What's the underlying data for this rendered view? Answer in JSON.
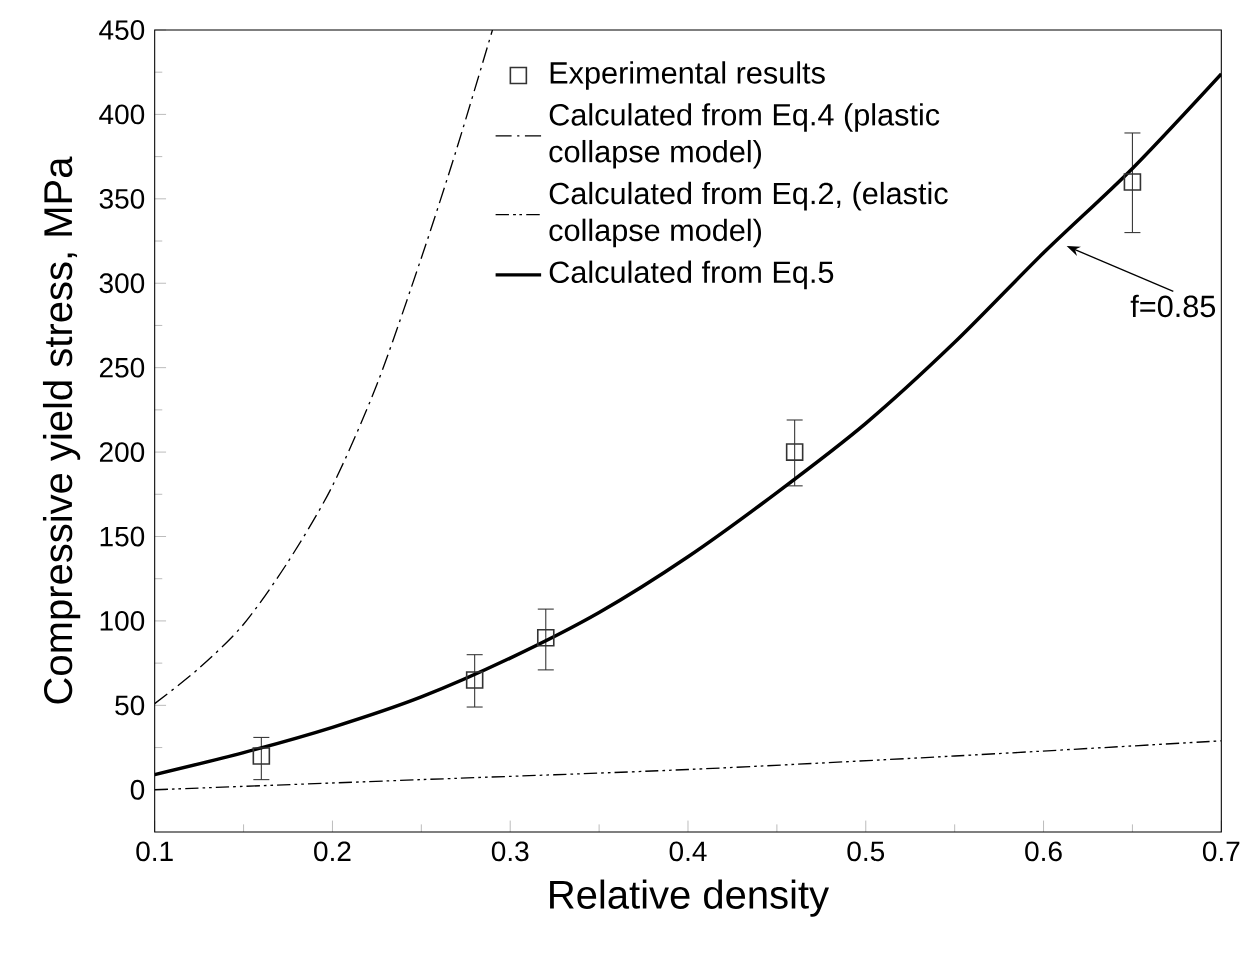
{
  "chart_data": {
    "type": "line",
    "xlabel": "Relative density",
    "ylabel": "Compressive yield stress, MPa",
    "xlim": [
      0.1,
      0.7
    ],
    "xticks": [
      0.1,
      0.2,
      0.3,
      0.4,
      0.5,
      0.6,
      0.7
    ],
    "ylim": [
      -25,
      450
    ],
    "yticks": [
      0,
      50,
      100,
      150,
      200,
      250,
      300,
      350,
      400,
      450
    ],
    "legend": "top",
    "grid": false,
    "annotations": [
      {
        "text": "f=0.85",
        "x": 0.613,
        "y": 322
      }
    ],
    "series": [
      {
        "name": "Experimental results",
        "type": "scatter",
        "color": "#333333",
        "marker": "square",
        "x": [
          0.16,
          0.28,
          0.32,
          0.46,
          0.65
        ],
        "values": [
          20,
          65,
          90,
          200,
          360
        ],
        "errors": [
          [
            6,
            31
          ],
          [
            49,
            80
          ],
          [
            71,
            107
          ],
          [
            180,
            219
          ],
          [
            330,
            389
          ]
        ]
      },
      {
        "name": "Calculated from Eq.4 (plastic collapse model)",
        "color": "#000000",
        "line_style": "dash-dot",
        "x": [
          0.1,
          0.125,
          0.15,
          0.175,
          0.2,
          0.225,
          0.25,
          0.27,
          0.29
        ],
        "values": [
          51,
          72,
          98,
          135,
          180,
          240,
          315,
          380,
          450
        ]
      },
      {
        "name": "Calculated from Eq.2, (elastic collapse model)",
        "color": "#000000",
        "line_style": "dash-dot-dot",
        "x": [
          0.1,
          0.25,
          0.4,
          0.55,
          0.7
        ],
        "values": [
          0,
          6,
          12,
          20,
          29
        ]
      },
      {
        "name": "Calculated from Eq.5",
        "color": "#000000",
        "line_style": "solid",
        "x": [
          0.1,
          0.15,
          0.2,
          0.25,
          0.3,
          0.35,
          0.4,
          0.45,
          0.5,
          0.55,
          0.6,
          0.65,
          0.7
        ],
        "values": [
          9,
          22,
          37,
          55,
          78,
          105,
          138,
          176,
          217,
          265,
          318,
          368,
          424
        ]
      }
    ]
  }
}
